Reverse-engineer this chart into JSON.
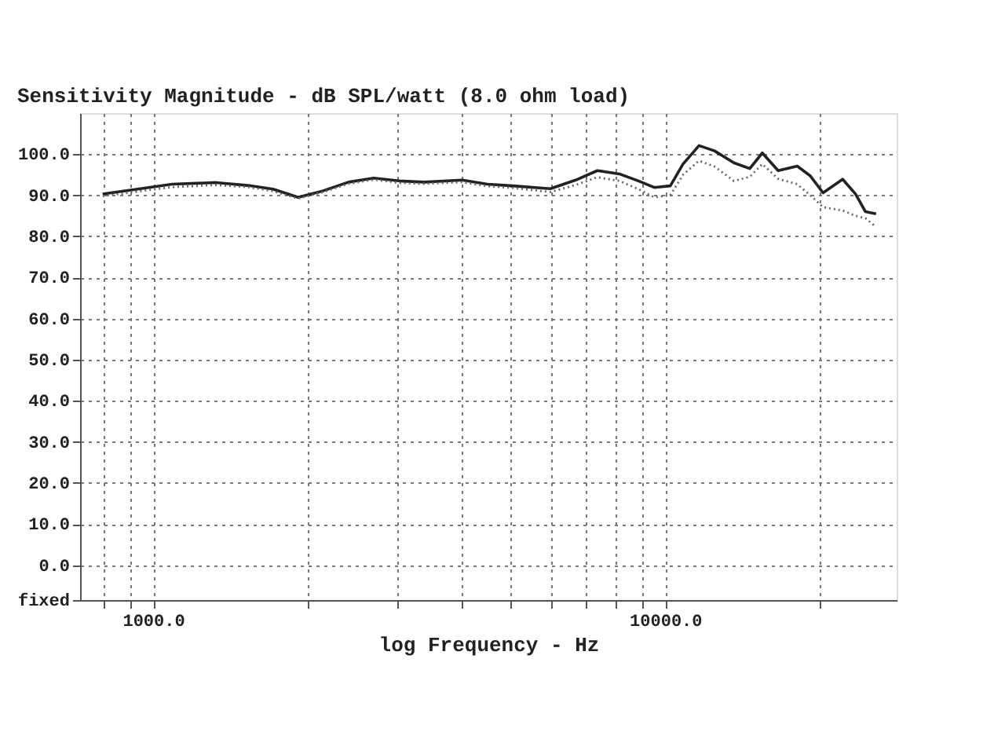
{
  "chart_data": {
    "type": "line",
    "title": "Sensitivity Magnitude - dB SPL/watt (8.0 ohm load)",
    "xlabel": "log Frequency - Hz",
    "log": "x",
    "grid": true,
    "marker": "none",
    "xlim": [
      720,
      28300
    ],
    "ylim": [
      -8.5,
      110
    ],
    "xticks": [
      {
        "value": 800,
        "label": null
      },
      {
        "value": 900,
        "label": null
      },
      {
        "value": 1000,
        "label": "1000.0"
      },
      {
        "value": 2000,
        "label": null
      },
      {
        "value": 3000,
        "label": null
      },
      {
        "value": 4000,
        "label": null
      },
      {
        "value": 5000,
        "label": null
      },
      {
        "value": 6000,
        "label": null
      },
      {
        "value": 7000,
        "label": null
      },
      {
        "value": 8000,
        "label": null
      },
      {
        "value": 9000,
        "label": null
      },
      {
        "value": 10000,
        "label": "10000.0"
      },
      {
        "value": 20000,
        "label": null
      }
    ],
    "yticks": [
      {
        "value": -8.5,
        "label": "fixed"
      },
      {
        "value": 0,
        "label": "0.0"
      },
      {
        "value": 10,
        "label": "10.0"
      },
      {
        "value": 20,
        "label": "20.0"
      },
      {
        "value": 30,
        "label": "30.0"
      },
      {
        "value": 40,
        "label": "40.0"
      },
      {
        "value": 50,
        "label": "50.0"
      },
      {
        "value": 60,
        "label": "60.0"
      },
      {
        "value": 70,
        "label": "70.0"
      },
      {
        "value": 80,
        "label": "80.0"
      },
      {
        "value": 90,
        "label": "90.0"
      },
      {
        "value": 100,
        "label": "100.0"
      }
    ],
    "series": [
      {
        "color": "#222222",
        "line_style": "solid",
        "x": [
          797,
          945,
          1089,
          1328,
          1530,
          1714,
          1919,
          2149,
          2407,
          2697,
          3021,
          3384,
          4012,
          4494,
          5035,
          5965,
          6682,
          7367,
          8134,
          8862,
          9519,
          10230,
          10830,
          11640,
          12480,
          13610,
          14620,
          15470,
          16610,
          18100,
          19200,
          20330,
          22200,
          23530,
          24600,
          25800
        ],
        "values": [
          90.3,
          91.6,
          92.7,
          93.1,
          92.4,
          91.5,
          89.5,
          91.1,
          93.2,
          94.2,
          93.5,
          93.2,
          93.7,
          92.7,
          92.3,
          91.6,
          93.7,
          96.0,
          95.2,
          93.5,
          91.9,
          92.3,
          97.6,
          102.1,
          100.8,
          97.9,
          96.5,
          100.3,
          96.0,
          97.1,
          94.7,
          90.6,
          93.9,
          90.3,
          86.0,
          85.5
        ]
      },
      {
        "color": "#666666",
        "line_style": "dotted",
        "x": [
          797,
          945,
          1089,
          1328,
          1530,
          1714,
          1919,
          2149,
          2407,
          2697,
          3021,
          3384,
          4012,
          4494,
          5035,
          5965,
          6682,
          7367,
          8134,
          8862,
          9519,
          10230,
          10830,
          11640,
          12480,
          13610,
          14620,
          15470,
          16610,
          18100,
          19200,
          20330,
          22200,
          23530,
          24600,
          25800
        ],
        "values": [
          89.8,
          91.0,
          92.0,
          92.5,
          92.0,
          91.0,
          89.2,
          90.8,
          92.8,
          93.8,
          93.0,
          92.8,
          93.2,
          92.2,
          91.8,
          90.8,
          92.5,
          94.4,
          93.5,
          91.5,
          89.5,
          90.0,
          95.0,
          98.4,
          97.0,
          93.5,
          94.5,
          97.6,
          94.0,
          92.7,
          90.0,
          87.1,
          86.3,
          85.0,
          84.4,
          82.3
        ]
      }
    ]
  }
}
